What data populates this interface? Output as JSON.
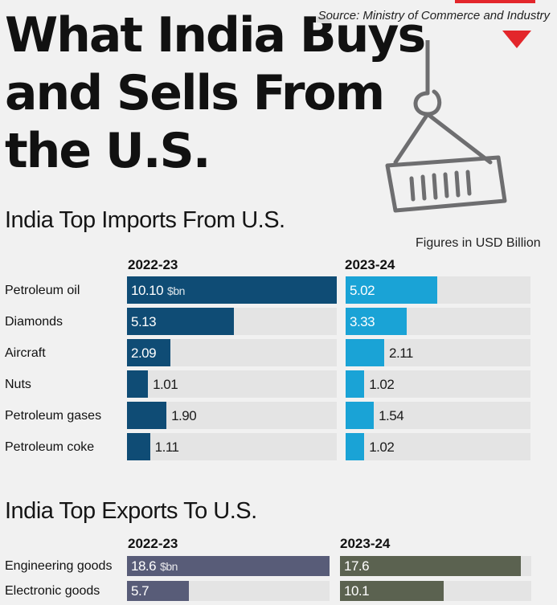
{
  "header": {
    "title_lines": [
      "What India Buys",
      "and Sells From",
      "the U.S."
    ],
    "source": "Source: Ministry of Commerce and Industry",
    "figures_note": "Figures in USD Billion"
  },
  "colors": {
    "imports_2022": "#0f4c75",
    "imports_2023": "#1aa3d6",
    "exports_2022": "#585c78",
    "exports_2023": "#5b6250",
    "track": "#e4e4e4",
    "accent": "#e3262b"
  },
  "icons": [
    "crane-hook-container-icon",
    "red-triangle-icon"
  ],
  "chart_data": [
    {
      "type": "bar",
      "title": "India Top Imports From U.S.",
      "unit_label": "$bn",
      "categories": [
        "Petroleum oil",
        "Diamonds",
        "Aircraft",
        "Nuts",
        "Petroleum gases",
        "Petroleum coke"
      ],
      "series": [
        {
          "name": "2022-23",
          "values": [
            10.1,
            5.13,
            2.09,
            1.01,
            1.9,
            1.11
          ],
          "labels": [
            "10.10",
            "5.13",
            "2.09",
            "1.01",
            "1.90",
            "1.11"
          ]
        },
        {
          "name": "2023-24",
          "values": [
            5.02,
            3.33,
            2.11,
            1.02,
            1.54,
            1.02
          ],
          "labels": [
            "5.02",
            "3.33",
            "2.11",
            "1.02",
            "1.54",
            "1.02"
          ]
        }
      ],
      "xlim": [
        0,
        10.1
      ]
    },
    {
      "type": "bar",
      "title": "India Top Exports To U.S.",
      "unit_label": "$bn",
      "categories": [
        "Engineering goods",
        "Electronic goods"
      ],
      "series": [
        {
          "name": "2022-23",
          "values": [
            18.6,
            5.7
          ],
          "labels": [
            "18.6",
            "5.7"
          ]
        },
        {
          "name": "2023-24",
          "values": [
            17.6,
            10.1
          ],
          "labels": [
            "17.6",
            "10.1"
          ]
        }
      ],
      "xlim": [
        0,
        18.6
      ]
    }
  ]
}
